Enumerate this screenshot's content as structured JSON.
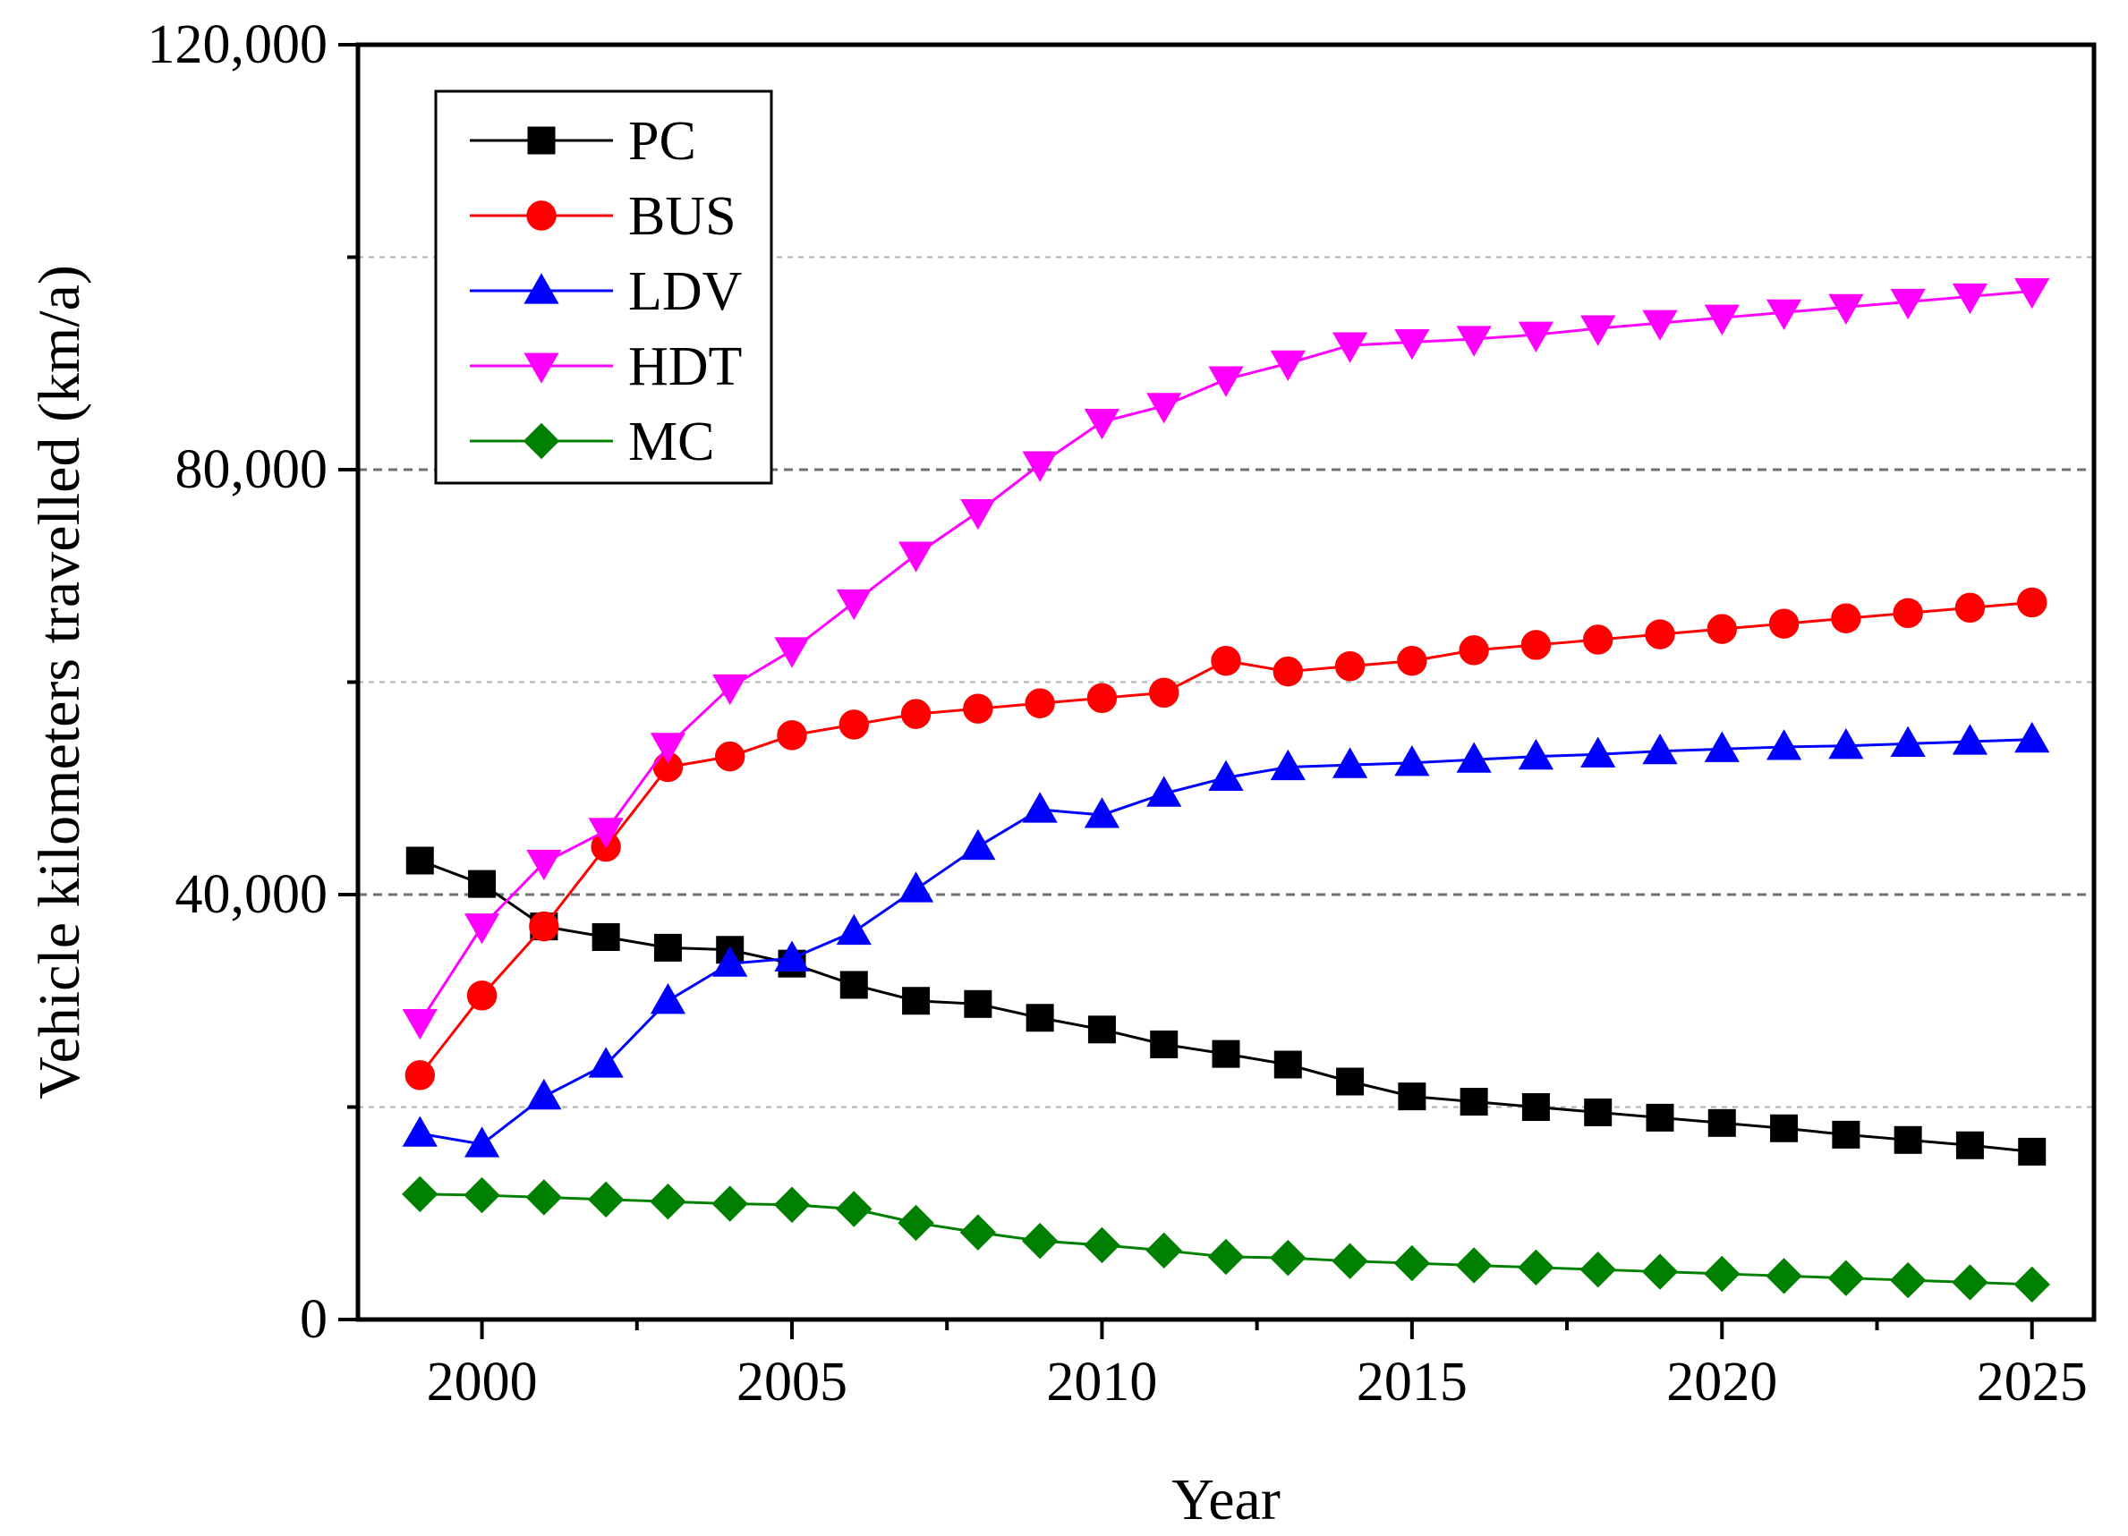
{
  "chart_data": {
    "type": "line",
    "title": "",
    "xlabel": "Year",
    "ylabel": "Vehicle kilometers travelled (km/a)",
    "xlim": [
      1998.0,
      2026.0
    ],
    "ylim": [
      0,
      120000
    ],
    "x_ticks": [
      2000,
      2005,
      2010,
      2015,
      2020,
      2025
    ],
    "x_tick_labels": [
      "2000",
      "2005",
      "2010",
      "2015",
      "2020",
      "2025"
    ],
    "y_ticks": [
      0,
      40000,
      80000,
      120000
    ],
    "y_tick_labels": [
      "0",
      "40,000",
      "80,000",
      "120,000"
    ],
    "grid": "dashed horizontal at 20,000 intervals",
    "legend_position": "top-left",
    "x": [
      1999,
      2000,
      2001,
      2002,
      2003,
      2004,
      2005,
      2006,
      2007,
      2008,
      2009,
      2010,
      2011,
      2012,
      2013,
      2014,
      2015,
      2016,
      2017,
      2018,
      2019,
      2020,
      2021,
      2022,
      2023,
      2024,
      2025
    ],
    "series": [
      {
        "name": "PC",
        "color": "#000000",
        "marker": "square",
        "values": [
          43200,
          41000,
          37000,
          36000,
          35000,
          34800,
          33500,
          31500,
          30000,
          29700,
          28400,
          27300,
          25900,
          25000,
          24000,
          22400,
          21000,
          20500,
          20000,
          19500,
          19000,
          18500,
          18000,
          17400,
          16900,
          16400,
          15800
        ]
      },
      {
        "name": "BUS",
        "color": "#ff0000",
        "marker": "circle",
        "values": [
          23000,
          30500,
          37000,
          44500,
          52000,
          53000,
          55000,
          56000,
          57000,
          57500,
          58000,
          58500,
          59000,
          62000,
          61000,
          61500,
          62000,
          63000,
          63500,
          64000,
          64500,
          65000,
          65500,
          66000,
          66500,
          67000,
          67500
        ]
      },
      {
        "name": "LDV",
        "color": "#0000ff",
        "marker": "triangle-up",
        "values": [
          17500,
          16500,
          21000,
          24000,
          30000,
          33500,
          34000,
          36500,
          40500,
          44500,
          48000,
          47500,
          49500,
          51000,
          52000,
          52200,
          52400,
          52700,
          53000,
          53200,
          53500,
          53700,
          53900,
          54000,
          54200,
          54400,
          54600
        ]
      },
      {
        "name": "HDT",
        "color": "#ff00ff",
        "marker": "triangle-down",
        "values": [
          28000,
          37000,
          43000,
          46000,
          54000,
          59500,
          63000,
          67500,
          72000,
          76000,
          80500,
          84500,
          86000,
          88500,
          90000,
          91700,
          92000,
          92300,
          92700,
          93300,
          93800,
          94300,
          94800,
          95300,
          95800,
          96300,
          96800
        ]
      },
      {
        "name": "MC",
        "color": "#008000",
        "marker": "diamond",
        "values": [
          11800,
          11700,
          11500,
          11300,
          11100,
          10900,
          10800,
          10400,
          9100,
          8200,
          7400,
          7000,
          6500,
          5900,
          5800,
          5500,
          5300,
          5100,
          4900,
          4700,
          4500,
          4300,
          4100,
          3900,
          3700,
          3500,
          3300
        ]
      }
    ]
  }
}
